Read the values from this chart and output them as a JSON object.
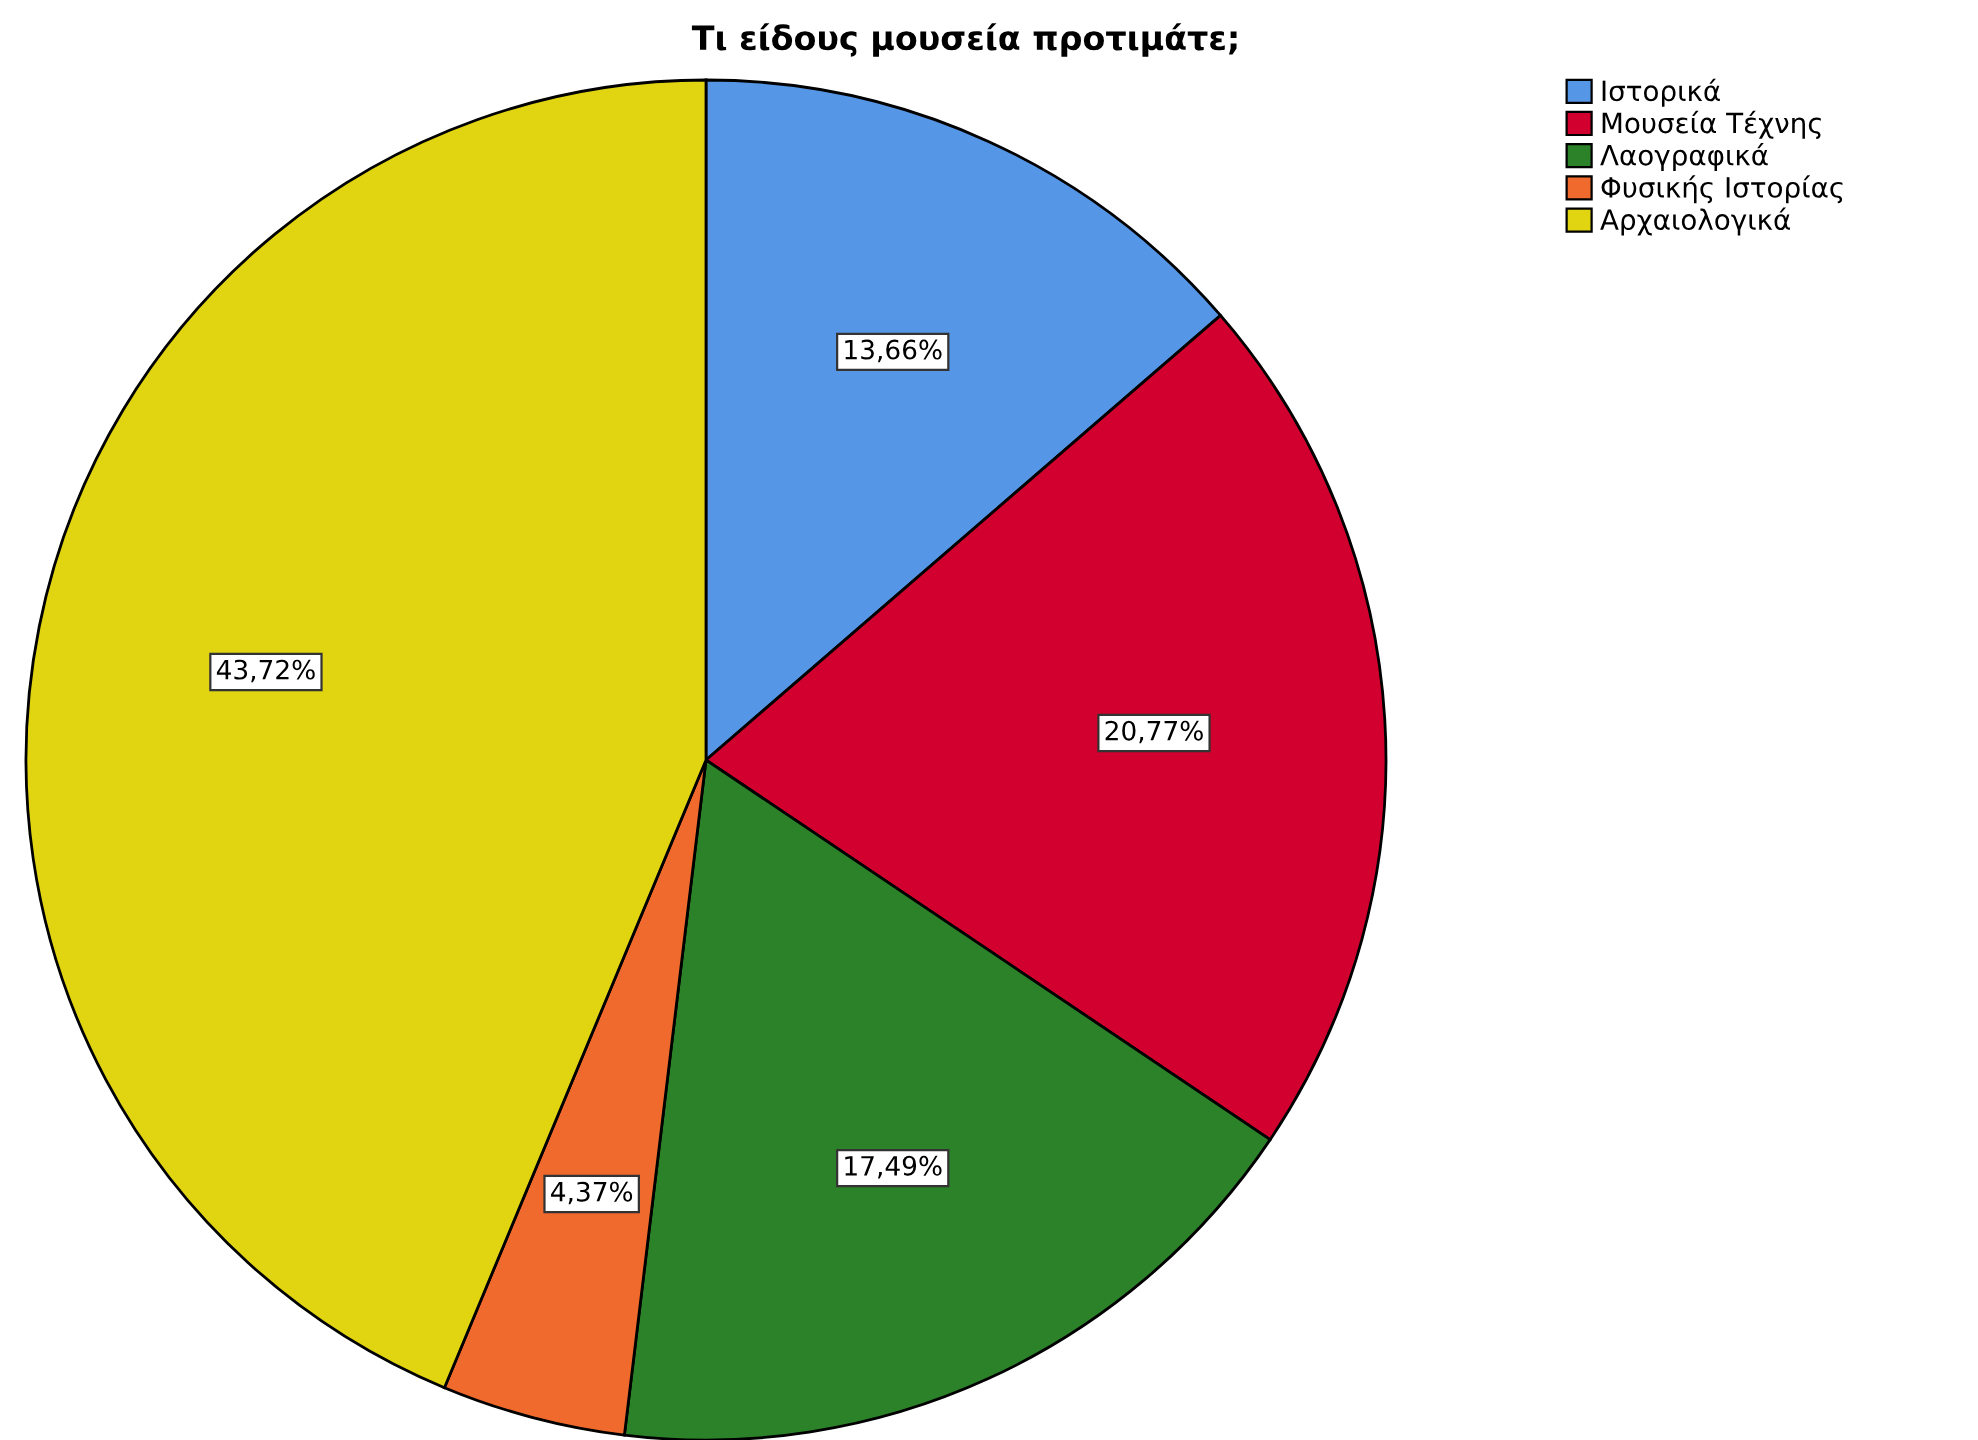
{
  "chart_data": {
    "type": "pie",
    "title": "Τι είδους μουσεία προτιμάτε;",
    "categories": [
      "Ιστορικά",
      "Μουσεία Τέχνης",
      "Λαογραφικά",
      "Φυσικής Ιστορίας",
      "Αρχαιολογικά"
    ],
    "values": [
      13.66,
      20.77,
      17.49,
      4.37,
      43.72
    ],
    "colors": [
      "#5596e6",
      "#d2002f",
      "#2b8229",
      "#ef6a2c",
      "#e1d511"
    ],
    "value_labels": [
      "13,66%",
      "20,77%",
      "17,49%",
      "4,37%",
      "43,72%"
    ],
    "legend": "top right"
  }
}
